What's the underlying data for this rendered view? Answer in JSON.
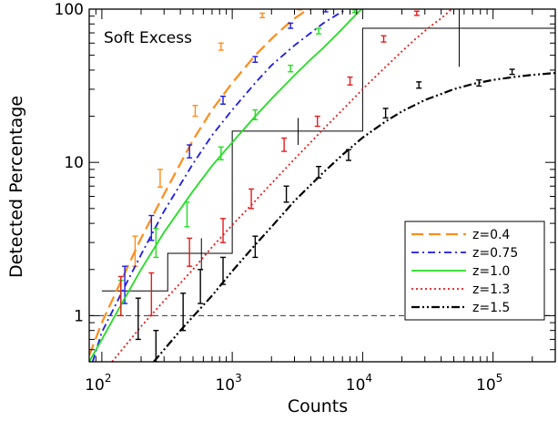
{
  "chart_data": {
    "type": "line",
    "annotation": "Soft Excess",
    "xlabel": "Counts",
    "ylabel": "Detected Percentage",
    "x_scale": "log",
    "y_scale": "log",
    "xlim": [
      80,
      300000
    ],
    "ylim": [
      0.5,
      100
    ],
    "x_ticks": [
      {
        "value": 100,
        "base": "10",
        "exp": "2"
      },
      {
        "value": 1000,
        "base": "10",
        "exp": "3"
      },
      {
        "value": 10000,
        "base": "10",
        "exp": "4"
      },
      {
        "value": 100000,
        "base": "10",
        "exp": "5"
      }
    ],
    "y_ticks": [
      {
        "value": 1,
        "label": "1"
      },
      {
        "value": 10,
        "label": "10"
      },
      {
        "value": 100,
        "label": "100"
      }
    ],
    "reference_line": {
      "y": 1,
      "style": "dashed",
      "color": "#333333"
    },
    "legend_position": "bottom-right",
    "series": [
      {
        "name": "z=0.4",
        "color": "#FF8C1A",
        "style": "dashed",
        "curve": [
          [
            80,
            0.55
          ],
          [
            100,
            0.9
          ],
          [
            150,
            1.9
          ],
          [
            200,
            3.2
          ],
          [
            300,
            6.2
          ],
          [
            500,
            14
          ],
          [
            700,
            22
          ],
          [
            1000,
            33
          ],
          [
            1500,
            50
          ],
          [
            2000,
            64
          ],
          [
            2500,
            76
          ],
          [
            3000,
            87
          ],
          [
            3500,
            95
          ],
          [
            4000,
            100
          ]
        ],
        "points": [
          {
            "x": 180,
            "y": 2.6,
            "lo": 2.1,
            "hi": 3.3
          },
          {
            "x": 280,
            "y": 7.9,
            "lo": 6.9,
            "hi": 9.0
          },
          {
            "x": 520,
            "y": 21.5,
            "lo": 20.0,
            "hi": 23.5
          },
          {
            "x": 820,
            "y": 57,
            "lo": 54,
            "hi": 60
          },
          {
            "x": 1700,
            "y": 91,
            "lo": 88,
            "hi": 94
          },
          {
            "x": 3300,
            "y": 101,
            "lo": 99,
            "hi": 103
          }
        ]
      },
      {
        "name": "z=0.75",
        "color": "#1A1AE6",
        "style": "dashdot",
        "curve": [
          [
            85,
            0.5
          ],
          [
            100,
            0.78
          ],
          [
            150,
            1.55
          ],
          [
            200,
            2.5
          ],
          [
            300,
            4.8
          ],
          [
            500,
            9.8
          ],
          [
            700,
            15
          ],
          [
            1000,
            22
          ],
          [
            1500,
            33
          ],
          [
            2000,
            43
          ],
          [
            3000,
            58
          ],
          [
            4000,
            70
          ],
          [
            5000,
            81
          ],
          [
            6500,
            93
          ],
          [
            7500,
            100
          ]
        ],
        "points": [
          {
            "x": 150,
            "y": 1.6,
            "lo": 1.2,
            "hi": 2.1
          },
          {
            "x": 240,
            "y": 3.8,
            "lo": 3.1,
            "hi": 4.5
          },
          {
            "x": 470,
            "y": 11.8,
            "lo": 10.7,
            "hi": 13.0
          },
          {
            "x": 850,
            "y": 25.5,
            "lo": 24.0,
            "hi": 27.0
          },
          {
            "x": 1500,
            "y": 47,
            "lo": 45,
            "hi": 49
          },
          {
            "x": 2800,
            "y": 78,
            "lo": 75,
            "hi": 81
          },
          {
            "x": 5200,
            "y": 98,
            "lo": 96,
            "hi": 100
          }
        ]
      },
      {
        "name": "z=1.0",
        "color": "#22DD22",
        "style": "solid",
        "curve": [
          [
            80,
            0.5
          ],
          [
            100,
            0.7
          ],
          [
            150,
            1.3
          ],
          [
            200,
            2.0
          ],
          [
            300,
            3.5
          ],
          [
            500,
            6.5
          ],
          [
            700,
            9.5
          ],
          [
            1000,
            13.5
          ],
          [
            1500,
            20
          ],
          [
            2000,
            26
          ],
          [
            3000,
            37
          ],
          [
            4000,
            47
          ],
          [
            5000,
            56
          ],
          [
            6500,
            70
          ],
          [
            8000,
            84
          ],
          [
            9000,
            93
          ],
          [
            9800,
            100
          ]
        ],
        "points": [
          {
            "x": 140,
            "y": 1.3,
            "lo": 1.0,
            "hi": 1.7
          },
          {
            "x": 260,
            "y": 3.0,
            "lo": 2.4,
            "hi": 3.7
          },
          {
            "x": 450,
            "y": 4.6,
            "lo": 3.8,
            "hi": 5.5
          },
          {
            "x": 820,
            "y": 11.5,
            "lo": 10.4,
            "hi": 12.6
          },
          {
            "x": 1500,
            "y": 20.5,
            "lo": 19.0,
            "hi": 22.0
          },
          {
            "x": 2800,
            "y": 41,
            "lo": 39,
            "hi": 43
          },
          {
            "x": 4600,
            "y": 72,
            "lo": 69,
            "hi": 75
          },
          {
            "x": 8700,
            "y": 97,
            "lo": 95,
            "hi": 99
          }
        ]
      },
      {
        "name": "z=1.3",
        "color": "#E61A1A",
        "style": "dotted",
        "curve": [
          [
            120,
            0.5
          ],
          [
            200,
            0.85
          ],
          [
            300,
            1.25
          ],
          [
            500,
            2.0
          ],
          [
            700,
            2.8
          ],
          [
            1000,
            3.9
          ],
          [
            1500,
            5.6
          ],
          [
            2000,
            7.3
          ],
          [
            3000,
            10.5
          ],
          [
            5000,
            16.5
          ],
          [
            7000,
            22
          ],
          [
            10000,
            30
          ],
          [
            15000,
            42
          ],
          [
            20000,
            53
          ],
          [
            25000,
            63
          ],
          [
            30000,
            72
          ],
          [
            35000,
            80
          ],
          [
            40000,
            87
          ],
          [
            45000,
            95
          ],
          [
            48000,
            100
          ]
        ],
        "points": [
          {
            "x": 140,
            "y": 1.35,
            "lo": 1.0,
            "hi": 1.8
          },
          {
            "x": 240,
            "y": 1.4,
            "lo": 1.0,
            "hi": 1.9
          },
          {
            "x": 470,
            "y": 2.6,
            "lo": 2.1,
            "hi": 3.2
          },
          {
            "x": 850,
            "y": 3.6,
            "lo": 3.0,
            "hi": 4.3
          },
          {
            "x": 1400,
            "y": 5.8,
            "lo": 5.0,
            "hi": 6.7
          },
          {
            "x": 2500,
            "y": 13,
            "lo": 11.8,
            "hi": 14.4
          },
          {
            "x": 4500,
            "y": 18.5,
            "lo": 17.2,
            "hi": 20.0
          },
          {
            "x": 8000,
            "y": 34,
            "lo": 32,
            "hi": 36
          },
          {
            "x": 14500,
            "y": 64,
            "lo": 61,
            "hi": 67
          },
          {
            "x": 26000,
            "y": 94,
            "lo": 91,
            "hi": 97
          }
        ]
      },
      {
        "name": "z=1.5",
        "color": "#000000",
        "style": "dashdotdot",
        "curve": [
          [
            250,
            0.5
          ],
          [
            400,
            0.8
          ],
          [
            700,
            1.35
          ],
          [
            1000,
            1.95
          ],
          [
            1500,
            2.9
          ],
          [
            2000,
            3.8
          ],
          [
            3000,
            5.6
          ],
          [
            5000,
            8.6
          ],
          [
            7000,
            11.2
          ],
          [
            10000,
            14.5
          ],
          [
            15000,
            18.5
          ],
          [
            20000,
            21.5
          ],
          [
            30000,
            25.5
          ],
          [
            50000,
            30
          ],
          [
            70000,
            32.5
          ],
          [
            100000,
            34.5
          ],
          [
            150000,
            36.2
          ],
          [
            200000,
            37.2
          ],
          [
            300000,
            38.3
          ]
        ],
        "points": [
          {
            "x": 190,
            "y": 1.0,
            "lo": 0.7,
            "hi": 1.3
          },
          {
            "x": 260,
            "y": 0.6,
            "lo": 0.5,
            "hi": 0.8
          },
          {
            "x": 420,
            "y": 1.05,
            "lo": 0.8,
            "hi": 1.4
          },
          {
            "x": 570,
            "y": 1.55,
            "lo": 1.2,
            "hi": 2.0
          },
          {
            "x": 850,
            "y": 1.95,
            "lo": 1.6,
            "hi": 2.4
          },
          {
            "x": 1500,
            "y": 2.8,
            "lo": 2.4,
            "hi": 3.3
          },
          {
            "x": 2600,
            "y": 6.2,
            "lo": 5.5,
            "hi": 7.0
          },
          {
            "x": 4600,
            "y": 8.6,
            "lo": 7.9,
            "hi": 9.4
          },
          {
            "x": 7800,
            "y": 11.2,
            "lo": 10.3,
            "hi": 12.1
          },
          {
            "x": 15000,
            "y": 21,
            "lo": 19.5,
            "hi": 22.5
          },
          {
            "x": 27000,
            "y": 32,
            "lo": 30.5,
            "hi": 33.5
          },
          {
            "x": 78000,
            "y": 33,
            "lo": 31.5,
            "hi": 34.5
          },
          {
            "x": 140000,
            "y": 39,
            "lo": 37.5,
            "hi": 40.5
          }
        ]
      }
    ],
    "histogram": {
      "color": "#000000",
      "bins": [
        {
          "x0": 100,
          "x1": 320,
          "y": 1.45
        },
        {
          "x0": 320,
          "x1": 1000,
          "y": 2.55
        },
        {
          "x0": 1000,
          "x1": 10000,
          "y": 16
        },
        {
          "x0": 10000,
          "x1": 300000,
          "y": 75
        }
      ],
      "errorbars": [
        {
          "x": 140,
          "lo": 1.15,
          "hi": 1.8
        },
        {
          "x": 580,
          "lo": 2.0,
          "hi": 3.2
        },
        {
          "x": 3200,
          "lo": 13,
          "hi": 19.5
        },
        {
          "x": 55000,
          "lo": 42,
          "hi": 110
        }
      ]
    }
  }
}
